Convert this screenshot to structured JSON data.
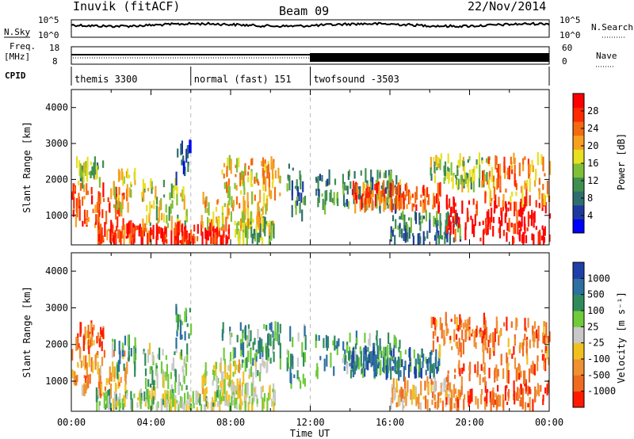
{
  "header": {
    "station": "Inuvik (fitACF)",
    "beam": "Beam 09",
    "date": "22/Nov/2014"
  },
  "status_panels": {
    "nsky_label": "N.Sky",
    "nsky_ticks": [
      "10^5",
      "10^0"
    ],
    "nsearch_label": "N.Search",
    "freq_label_1": "Freq.",
    "freq_label_2": "[MHz]",
    "freq_ticks": [
      "18",
      "8"
    ],
    "nave_label": "Nave",
    "nave_ticks": [
      "60",
      "0"
    ],
    "cpid_label": "CPID",
    "cpid_segments": [
      {
        "label": "themis 3300",
        "start": 0,
        "end": 6
      },
      {
        "label": "normal (fast) 151",
        "start": 6,
        "end": 12
      },
      {
        "label": "twofsound -3503",
        "start": 12,
        "end": 24
      }
    ]
  },
  "chart_data": [
    {
      "type": "heatmap",
      "title": "Power",
      "ylabel": "Slant Range [km]",
      "xlabel": "Time UT",
      "ylim": [
        180,
        4500
      ],
      "yticks": [
        1000,
        2000,
        3000,
        4000
      ],
      "xlim": [
        0,
        24
      ],
      "xtick_labels": [
        "00:00",
        "04:00",
        "08:00",
        "12:00",
        "16:00",
        "20:00",
        "00:00"
      ],
      "colorbar_label": "Power [dB]",
      "colorbar_ticks": [
        "4",
        "8",
        "12",
        "16",
        "20",
        "24",
        "28"
      ],
      "colorbar_colors": [
        "#0000ff",
        "#1e3aa0",
        "#2f6e6e",
        "#3f8f4f",
        "#7fc036",
        "#e8e020",
        "#f7a020",
        "#f46a10",
        "#ff2a00",
        "#ff0000"
      ],
      "echo_regions": [
        {
          "t0": 0.0,
          "t1": 2.8,
          "r0": 700,
          "r1": 1800,
          "level": 0.78
        },
        {
          "t0": 0.2,
          "t1": 1.6,
          "r0": 1850,
          "r1": 2500,
          "level": 0.45
        },
        {
          "t0": 1.2,
          "t1": 4.2,
          "r0": 300,
          "r1": 700,
          "level": 0.85
        },
        {
          "t0": 2.0,
          "t1": 3.2,
          "r0": 1200,
          "r1": 2200,
          "level": 0.55
        },
        {
          "t0": 3.5,
          "t1": 5.8,
          "r0": 700,
          "r1": 1900,
          "level": 0.5
        },
        {
          "t0": 4.2,
          "t1": 8.0,
          "r0": 220,
          "r1": 650,
          "level": 0.9
        },
        {
          "t0": 5.2,
          "t1": 6.0,
          "r0": 2000,
          "r1": 3000,
          "level": 0.2
        },
        {
          "t0": 6.5,
          "t1": 9.8,
          "r0": 700,
          "r1": 1500,
          "level": 0.6
        },
        {
          "t0": 7.5,
          "t1": 10.5,
          "r0": 1500,
          "r1": 2500,
          "level": 0.62
        },
        {
          "t0": 8.0,
          "t1": 10.2,
          "r0": 250,
          "r1": 800,
          "level": 0.45
        },
        {
          "t0": 10.8,
          "t1": 11.8,
          "r0": 900,
          "r1": 2400,
          "level": 0.3
        },
        {
          "t0": 12.2,
          "t1": 16.5,
          "r0": 1200,
          "r1": 2200,
          "level": 0.35
        },
        {
          "t0": 14.0,
          "t1": 18.5,
          "r0": 1200,
          "r1": 1800,
          "level": 0.78
        },
        {
          "t0": 16.0,
          "t1": 19.5,
          "r0": 300,
          "r1": 1000,
          "level": 0.3
        },
        {
          "t0": 18.0,
          "t1": 21.0,
          "r0": 1800,
          "r1": 2700,
          "level": 0.45
        },
        {
          "t0": 18.8,
          "t1": 24.0,
          "r0": 300,
          "r1": 1400,
          "level": 0.95
        },
        {
          "t0": 20.5,
          "t1": 24.0,
          "r0": 1400,
          "r1": 2600,
          "level": 0.7
        }
      ]
    },
    {
      "type": "heatmap",
      "title": "Velocity",
      "ylabel": "Slant Range [km]",
      "xlabel": "Time UT",
      "ylim": [
        180,
        4500
      ],
      "yticks": [
        1000,
        2000,
        3000,
        4000
      ],
      "xlim": [
        0,
        24
      ],
      "xtick_labels": [
        "00:00",
        "04:00",
        "08:00",
        "12:00",
        "16:00",
        "20:00",
        "00:00"
      ],
      "colorbar_label": "Velocity [m s⁻¹]",
      "colorbar_ticks": [
        "1000",
        "500",
        "100",
        "25",
        "-25",
        "-100",
        "-500",
        "-1000"
      ],
      "colorbar_colors": [
        "#1f3fa8",
        "#2c6fa0",
        "#2f8c5a",
        "#6fcb3a",
        "#c8c8c8",
        "#f0c020",
        "#f09030",
        "#f06a20",
        "#ff1a00"
      ],
      "echo_regions": [
        {
          "t0": 0.0,
          "t1": 2.8,
          "r0": 700,
          "r1": 1800,
          "level": 0.72
        },
        {
          "t0": 0.2,
          "t1": 1.6,
          "r0": 1850,
          "r1": 2500,
          "level": 0.8
        },
        {
          "t0": 1.2,
          "t1": 4.2,
          "r0": 300,
          "r1": 700,
          "level": 0.45
        },
        {
          "t0": 2.0,
          "t1": 3.2,
          "r0": 1200,
          "r1": 2200,
          "level": 0.3
        },
        {
          "t0": 3.5,
          "t1": 5.8,
          "r0": 700,
          "r1": 1900,
          "level": 0.4
        },
        {
          "t0": 4.2,
          "t1": 8.0,
          "r0": 220,
          "r1": 650,
          "level": 0.5
        },
        {
          "t0": 5.2,
          "t1": 6.0,
          "r0": 2000,
          "r1": 3000,
          "level": 0.25
        },
        {
          "t0": 6.5,
          "t1": 9.8,
          "r0": 700,
          "r1": 1500,
          "level": 0.5
        },
        {
          "t0": 7.5,
          "t1": 10.5,
          "r0": 1500,
          "r1": 2500,
          "level": 0.3
        },
        {
          "t0": 8.0,
          "t1": 10.2,
          "r0": 250,
          "r1": 800,
          "level": 0.5
        },
        {
          "t0": 10.8,
          "t1": 11.8,
          "r0": 900,
          "r1": 2400,
          "level": 0.35
        },
        {
          "t0": 12.2,
          "t1": 16.5,
          "r0": 1200,
          "r1": 2200,
          "level": 0.3
        },
        {
          "t0": 14.0,
          "t1": 18.5,
          "r0": 1200,
          "r1": 1800,
          "level": 0.2
        },
        {
          "t0": 16.0,
          "t1": 19.5,
          "r0": 300,
          "r1": 1000,
          "level": 0.65
        },
        {
          "t0": 18.0,
          "t1": 21.0,
          "r0": 1800,
          "r1": 2700,
          "level": 0.78
        },
        {
          "t0": 18.8,
          "t1": 24.0,
          "r0": 300,
          "r1": 1400,
          "level": 0.85
        },
        {
          "t0": 20.5,
          "t1": 24.0,
          "r0": 1400,
          "r1": 2600,
          "level": 0.8
        }
      ]
    }
  ]
}
